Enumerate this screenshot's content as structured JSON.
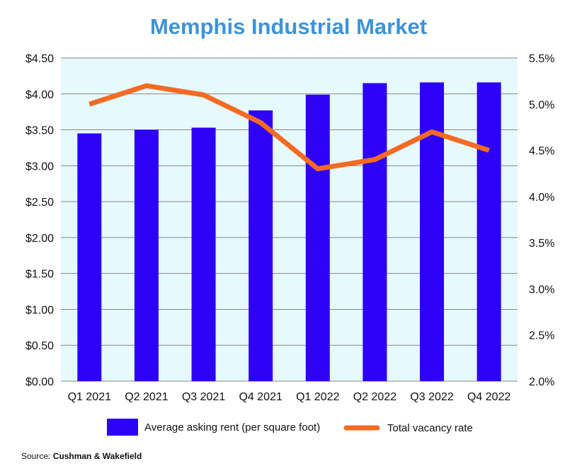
{
  "chart_data": {
    "type": "bar",
    "title": "Memphis Industrial Market",
    "categories": [
      "Q1 2021",
      "Q2 2021",
      "Q3 2021",
      "Q4 2021",
      "Q1 2022",
      "Q2 2022",
      "Q3 2022",
      "Q4 2022"
    ],
    "series": [
      {
        "name": "Average asking rent (per square foot)",
        "type": "bar",
        "axis": "left",
        "values": [
          3.45,
          3.5,
          3.53,
          3.77,
          3.99,
          4.15,
          4.16,
          4.16
        ]
      },
      {
        "name": "Total vacancy rate",
        "type": "line",
        "axis": "right",
        "values": [
          5.0,
          5.2,
          5.1,
          4.8,
          4.3,
          4.4,
          4.7,
          4.5
        ]
      }
    ],
    "y_left": {
      "min": 0,
      "max": 4.5,
      "ticks": [
        "$0.00",
        "$0.50",
        "$1.00",
        "$1.50",
        "$2.00",
        "$2.50",
        "$3.00",
        "$3.50",
        "$4.00",
        "$4.50"
      ]
    },
    "y_right": {
      "min": 2.0,
      "max": 5.5,
      "ticks": [
        "2.0%",
        "2.5%",
        "3.0%",
        "3.5%",
        "4.0%",
        "4.5%",
        "5.0%",
        "5.5%"
      ]
    },
    "grid": true,
    "legend": "bottom",
    "colors": {
      "bar": "#2d00f7",
      "line": "#f46a22",
      "plot_bg": "#e6f9fc",
      "grid": "#888888",
      "title": "#3d93d8"
    }
  },
  "source": {
    "label": "Source:",
    "name": "Cushman & Wakefield"
  }
}
